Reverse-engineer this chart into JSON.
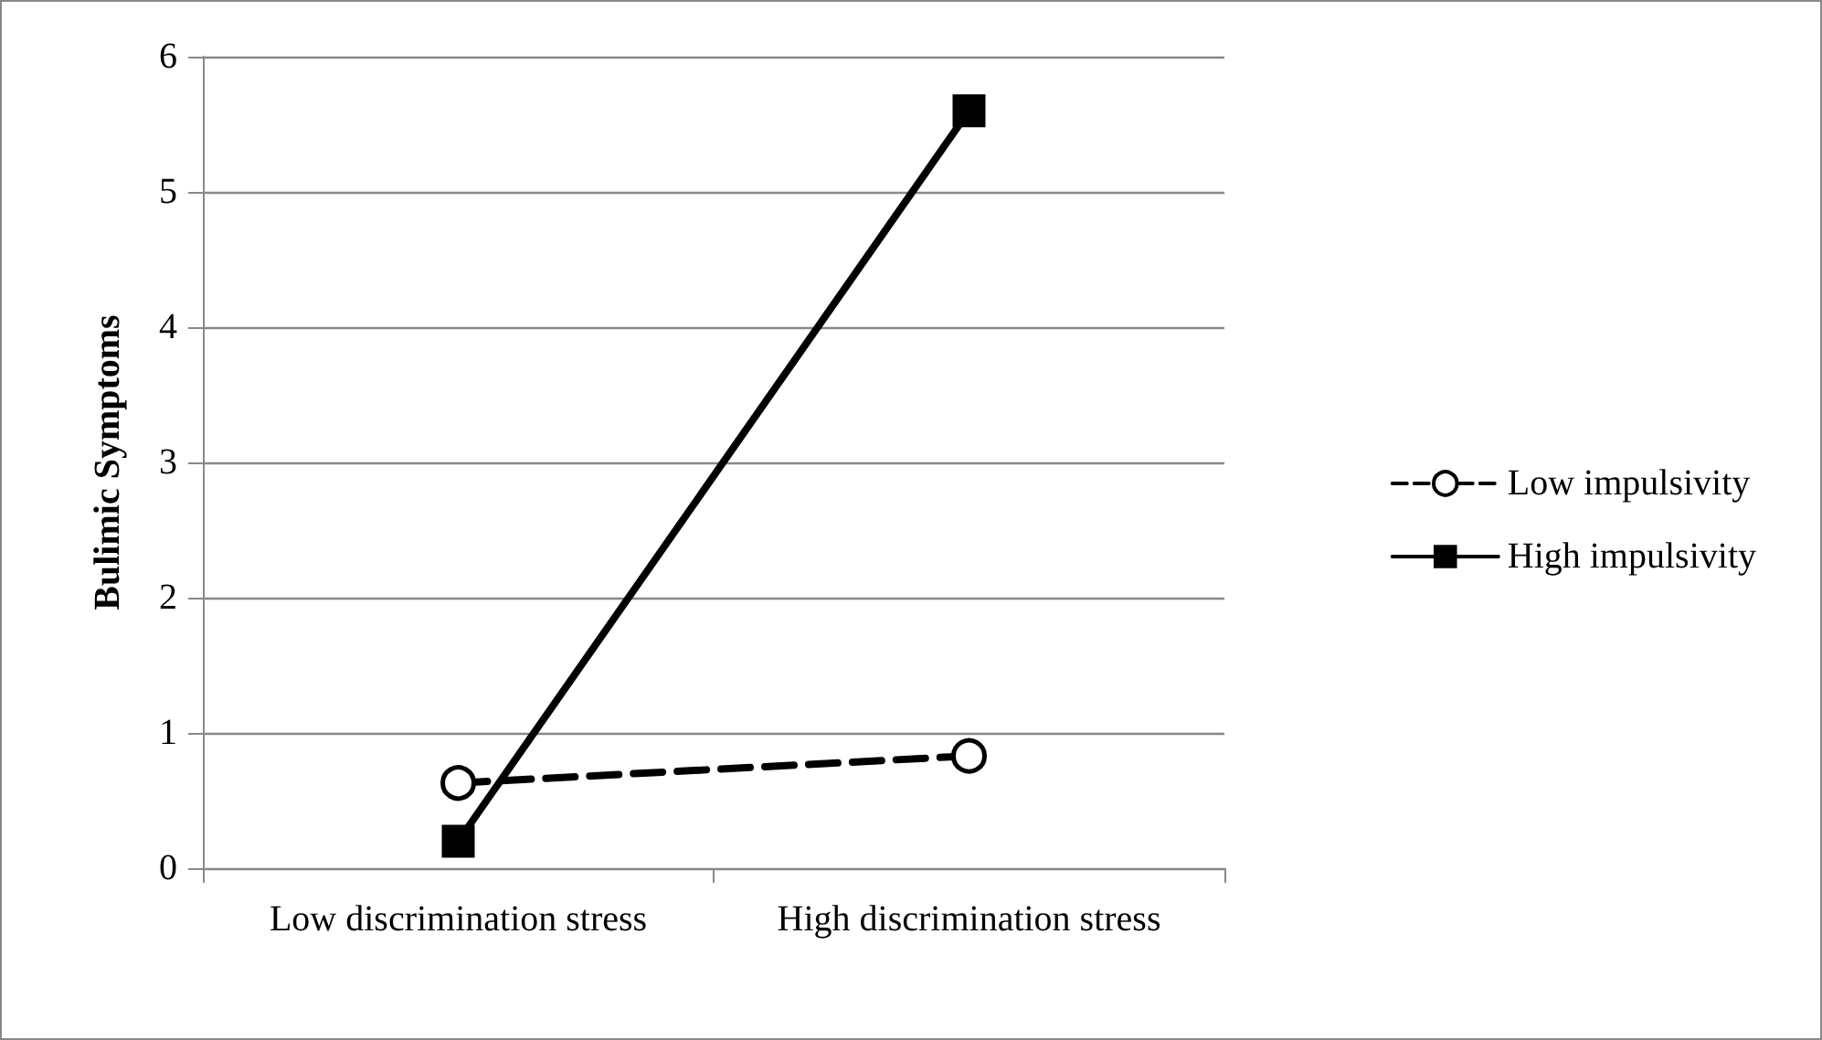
{
  "chart_data": {
    "type": "line",
    "ylabel": "Bulimic Symptoms",
    "categories": [
      "Low discrimination stress",
      "High discrimination stress"
    ],
    "series": [
      {
        "name": "Low impulsivity",
        "color": "#000000",
        "values": [
          0.63,
          0.83
        ],
        "marker": "circle",
        "line_style": "dashed"
      },
      {
        "name": "High impulsivity",
        "color": "#000000",
        "values": [
          0.2,
          5.6
        ],
        "marker": "square",
        "line_style": "solid"
      }
    ],
    "ylim": [
      0,
      6
    ],
    "yticks": [
      0,
      1,
      2,
      3,
      4,
      5,
      6
    ],
    "grid": "y",
    "legend": "right"
  }
}
